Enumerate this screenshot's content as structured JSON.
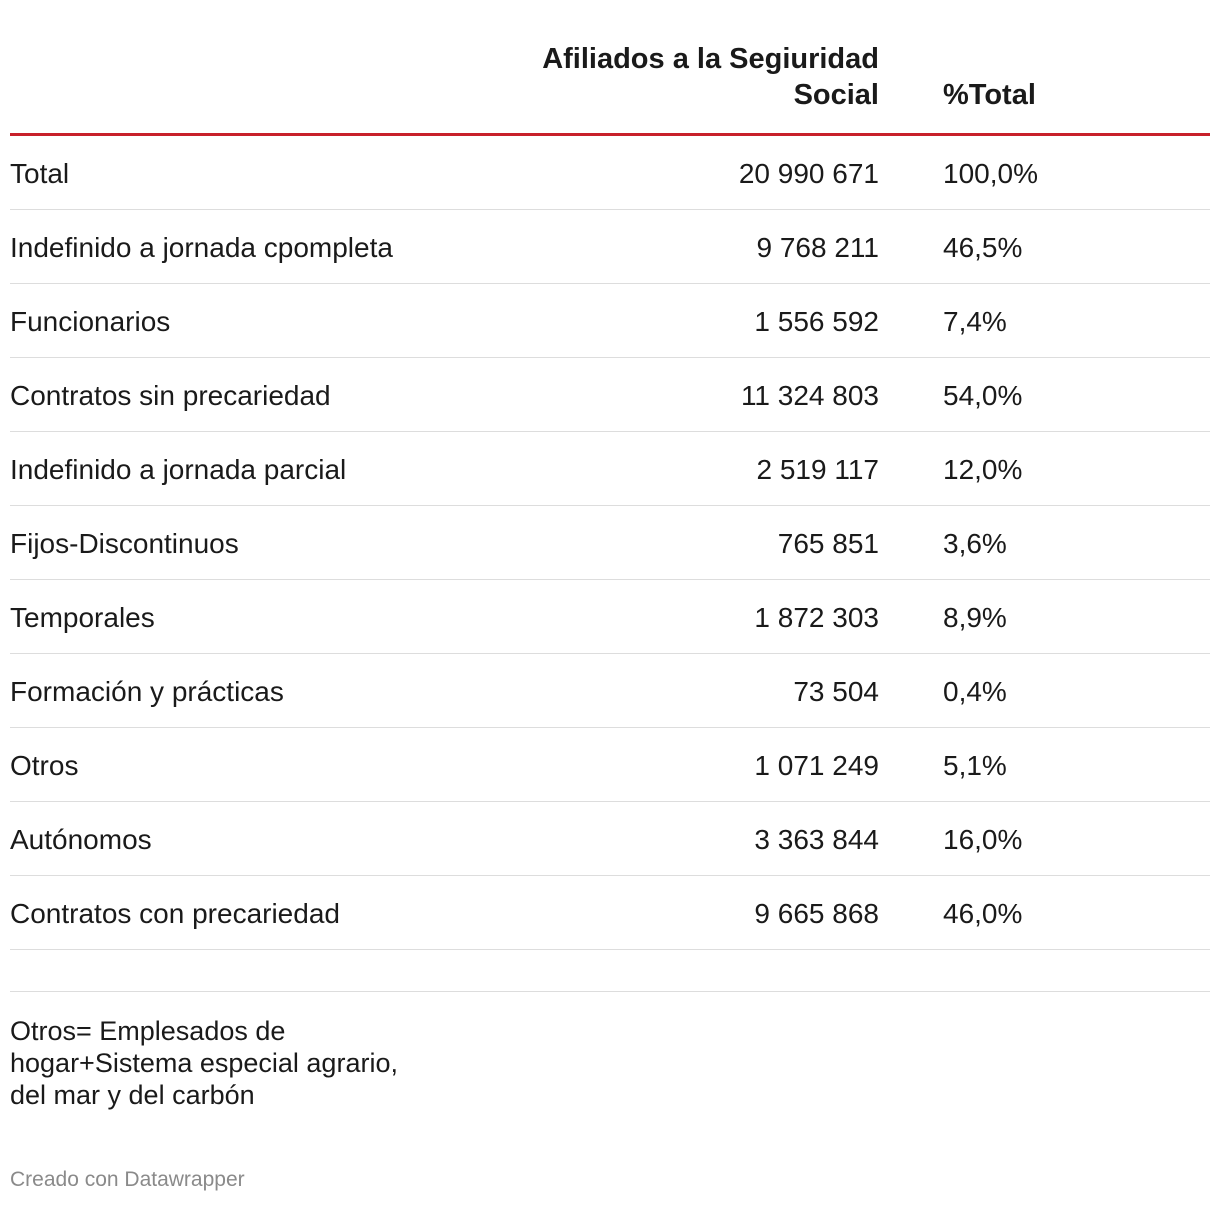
{
  "chart_data": {
    "type": "table",
    "columns": [
      "",
      "Afiliados a la Segiuridad Social",
      "%Total"
    ],
    "header": {
      "value_col": "Afiliados a la Segiuridad Social",
      "pct_col": "%Total"
    },
    "rows": [
      {
        "label": "Total",
        "value": "20 990 671",
        "pct": "100,0%"
      },
      {
        "label": "Indefinido a jornada cpompleta",
        "value": "9 768 211",
        "pct": "46,5%"
      },
      {
        "label": "Funcionarios",
        "value": "1 556 592",
        "pct": "7,4%"
      },
      {
        "label": "Contratos sin precariedad",
        "value": "11 324 803",
        "pct": "54,0%"
      },
      {
        "label": "Indefinido a jornada parcial",
        "value": "2 519 117",
        "pct": "12,0%"
      },
      {
        "label": "Fijos-Discontinuos",
        "value": "765 851",
        "pct": "3,6%"
      },
      {
        "label": "Temporales",
        "value": "1 872 303",
        "pct": "8,9%"
      },
      {
        "label": "Formación y prácticas",
        "value": "73 504",
        "pct": "0,4%"
      },
      {
        "label": "Otros",
        "value": "1 071 249",
        "pct": "5,1%"
      },
      {
        "label": "Autónomos",
        "value": "3 363 844",
        "pct": "16,0%"
      },
      {
        "label": "Contratos con precariedad",
        "value": "9 665 868",
        "pct": "46,0%"
      }
    ]
  },
  "note": "Otros= Emplesados de hogar+Sistema especial agrario, del mar y del carbón",
  "credit": "Creado con Datawrapper",
  "colors": {
    "header_rule": "#c8202a",
    "row_rule": "#dddddd",
    "credit": "#8a8a8a"
  }
}
